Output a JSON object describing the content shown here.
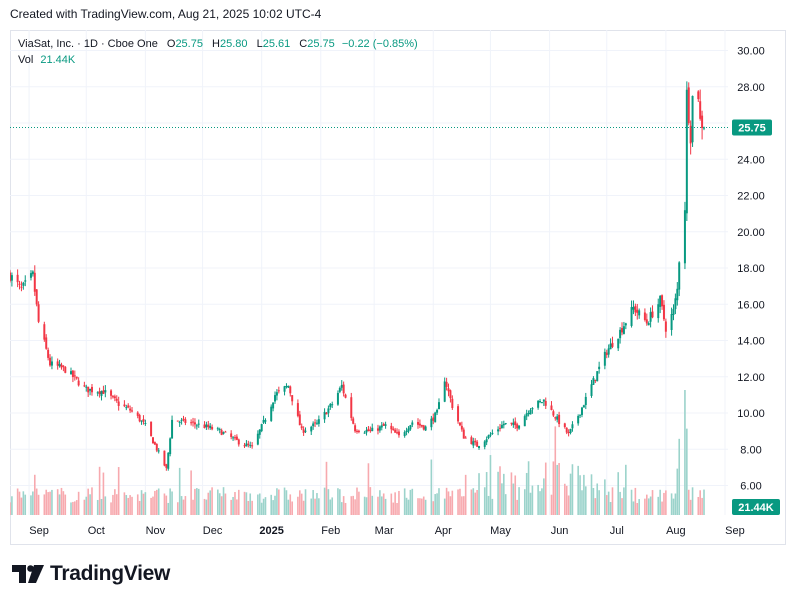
{
  "header": {
    "created_text": "Created with TradingView.com, Aug 21, 2025 10:02 UTC-4"
  },
  "legend": {
    "symbol": "ViaSat, Inc. · 1D · Cboe One",
    "o_label": "O",
    "o_value": "25.75",
    "h_label": "H",
    "h_value": "25.80",
    "l_label": "L",
    "l_value": "25.61",
    "c_label": "C",
    "c_value": "25.75",
    "change": "−0.22 (−0.85%)",
    "vol_label": "Vol",
    "vol_value": "21.44K"
  },
  "brand": {
    "name": "TradingView"
  },
  "colors": {
    "up": "#089981",
    "down": "#f23645",
    "up_vol": "#9bd3cb",
    "down_vol": "#f7a9ae",
    "grid": "#f0f3fa",
    "axis_text": "#131722"
  },
  "chart_data": {
    "type": "candlestick",
    "title": "ViaSat, Inc. · 1D · Cboe One",
    "ylim": [
      5.2,
      31.0
    ],
    "y_ticks": [
      "6.00",
      "8.00",
      "10.00",
      "12.00",
      "14.00",
      "16.00",
      "18.00",
      "20.00",
      "22.00",
      "24.00",
      "26.00",
      "28.00",
      "30.00"
    ],
    "x_labels": [
      "Sep",
      "Oct",
      "Nov",
      "Dec",
      "2025",
      "Feb",
      "Mar",
      "Apr",
      "May",
      "Jun",
      "Jul",
      "Aug",
      "Sep"
    ],
    "last_price": "25.75",
    "last_volume": "21.44K",
    "close_anchors": [
      [
        "2024-08-22",
        17.6
      ],
      [
        "2024-08-28",
        16.8
      ],
      [
        "2024-09-03",
        17.6
      ],
      [
        "2024-09-06",
        15.0
      ],
      [
        "2024-09-12",
        12.7
      ],
      [
        "2024-09-20",
        12.4
      ],
      [
        "2024-10-01",
        11.3
      ],
      [
        "2024-10-10",
        11.2
      ],
      [
        "2024-10-18",
        10.5
      ],
      [
        "2024-10-25",
        10.1
      ],
      [
        "2024-11-01",
        9.3
      ],
      [
        "2024-11-08",
        7.8
      ],
      [
        "2024-11-12",
        6.9
      ],
      [
        "2024-11-15",
        9.6
      ],
      [
        "2024-11-22",
        9.5
      ],
      [
        "2024-12-01",
        9.3
      ],
      [
        "2024-12-10",
        9.0
      ],
      [
        "2024-12-20",
        8.4
      ],
      [
        "2024-12-27",
        8.1
      ],
      [
        "2025-01-03",
        9.7
      ],
      [
        "2025-01-08",
        11.0
      ],
      [
        "2025-01-15",
        11.5
      ],
      [
        "2025-01-22",
        9.0
      ],
      [
        "2025-01-30",
        9.4
      ],
      [
        "2025-02-07",
        10.5
      ],
      [
        "2025-02-12",
        11.5
      ],
      [
        "2025-02-19",
        9.1
      ],
      [
        "2025-02-27",
        9.0
      ],
      [
        "2025-03-07",
        9.3
      ],
      [
        "2025-03-14",
        8.7
      ],
      [
        "2025-03-21",
        9.5
      ],
      [
        "2025-03-28",
        9.2
      ],
      [
        "2025-04-03",
        10.0
      ],
      [
        "2025-04-07",
        11.9
      ],
      [
        "2025-04-11",
        10.4
      ],
      [
        "2025-04-17",
        8.7
      ],
      [
        "2025-04-24",
        8.2
      ],
      [
        "2025-05-01",
        8.8
      ],
      [
        "2025-05-08",
        9.4
      ],
      [
        "2025-05-15",
        9.3
      ],
      [
        "2025-05-22",
        10.3
      ],
      [
        "2025-05-29",
        10.7
      ],
      [
        "2025-06-04",
        9.8
      ],
      [
        "2025-06-11",
        8.8
      ],
      [
        "2025-06-18",
        10.3
      ],
      [
        "2025-06-25",
        12.0
      ],
      [
        "2025-07-01",
        13.4
      ],
      [
        "2025-07-08",
        14.5
      ],
      [
        "2025-07-15",
        15.8
      ],
      [
        "2025-07-22",
        15.0
      ],
      [
        "2025-07-29",
        16.2
      ],
      [
        "2025-08-01",
        14.7
      ],
      [
        "2025-08-05",
        15.6
      ],
      [
        "2025-08-07",
        16.8
      ],
      [
        "2025-08-08",
        18.5
      ],
      [
        "2025-08-11",
        21.4
      ],
      [
        "2025-08-12",
        27.6
      ],
      [
        "2025-08-14",
        25.3
      ],
      [
        "2025-08-15",
        27.4
      ],
      [
        "2025-08-18",
        27.6
      ],
      [
        "2025-08-19",
        26.1
      ],
      [
        "2025-08-20",
        25.97
      ],
      [
        "2025-08-21",
        25.75
      ]
    ],
    "ohlc_last": {
      "open": 25.75,
      "high": 25.8,
      "low": 25.61,
      "close": 25.75,
      "volume": "21.44K"
    },
    "change": "−0.22 (−0.85%)"
  }
}
